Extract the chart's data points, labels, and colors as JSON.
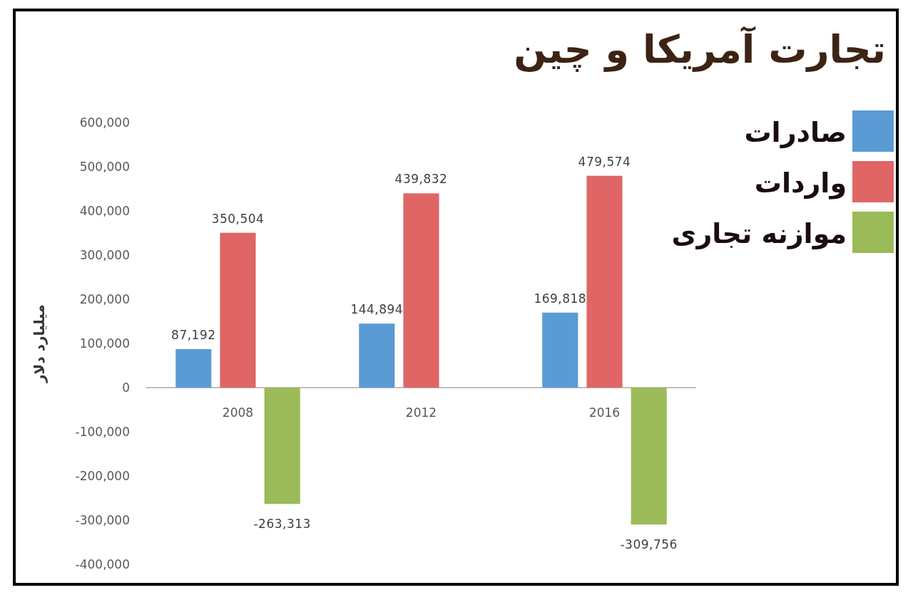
{
  "chart_data": {
    "type": "bar",
    "title": "تجارت آمریکا و چین",
    "ylabel": "میلیارد دلار",
    "categories": [
      "2008",
      "2012",
      "2016"
    ],
    "series": [
      {
        "name": "صادرات",
        "color": "#5b9bd5",
        "values": [
          87192,
          144894,
          169818
        ],
        "value_labels": [
          "87,192",
          "144,894",
          "169,818"
        ]
      },
      {
        "name": "واردات",
        "color": "#e06666",
        "values": [
          350504,
          439832,
          479574
        ],
        "value_labels": [
          "350,504",
          "439,832",
          "479,574"
        ]
      },
      {
        "name": "موازنه تجاری",
        "color": "#9bbb59",
        "values": [
          -263313,
          null,
          -309756
        ],
        "value_labels": [
          "-263,313",
          null,
          "-309,756"
        ]
      }
    ],
    "ylim": [
      -400000,
      600000
    ],
    "yticks": [
      {
        "value": -400000,
        "label": "-400,000"
      },
      {
        "value": -300000,
        "label": "-300,000"
      },
      {
        "value": -200000,
        "label": "-200,000"
      },
      {
        "value": -100000,
        "label": "-100,000"
      },
      0,
      {
        "value": 100000,
        "label": "100,000"
      },
      {
        "value": 200000,
        "label": "200,000"
      },
      {
        "value": 300000,
        "label": "300,000"
      },
      {
        "value": 400000,
        "label": "400,000"
      },
      {
        "value": 500000,
        "label": "500,000"
      },
      {
        "value": 600000,
        "label": "600,000"
      }
    ],
    "legend": "top right",
    "grid": false
  }
}
